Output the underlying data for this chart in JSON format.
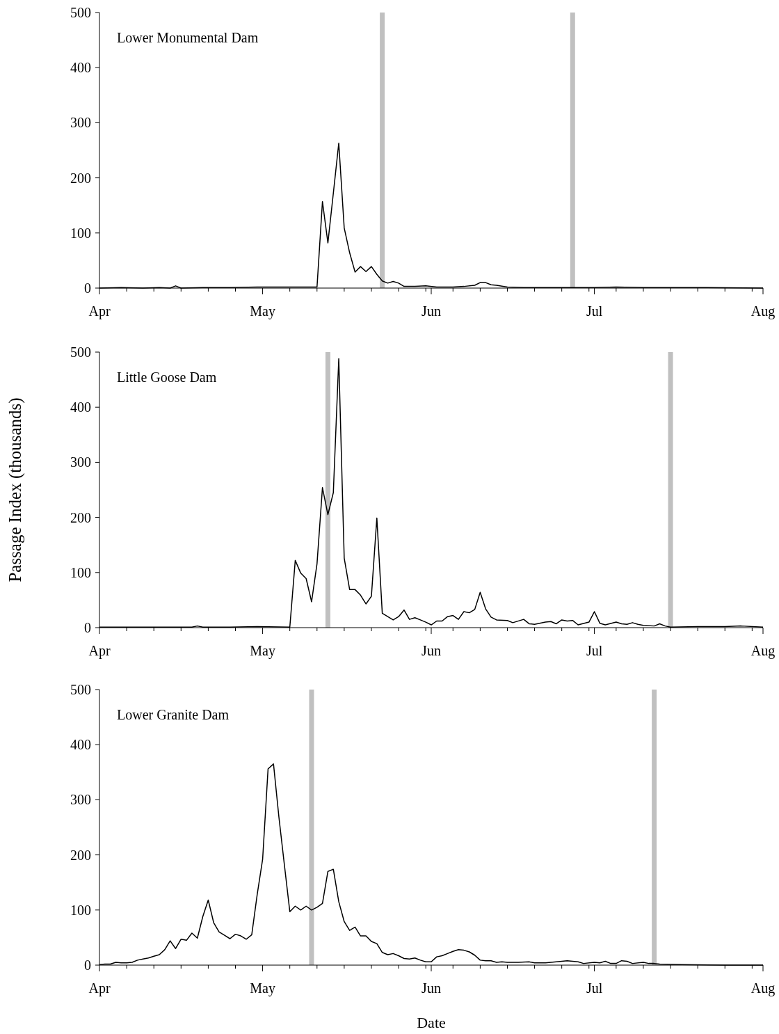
{
  "chart_data": [
    {
      "type": "line",
      "title": "Lower Monumental Dam",
      "xlim": [
        "--04-01",
        "--08-01"
      ],
      "ylim": [
        0,
        500
      ],
      "yticks": [
        0,
        100,
        200,
        300,
        400,
        500
      ],
      "xticks": [
        {
          "value": "--04-01",
          "label": "Apr"
        },
        {
          "value": "--04-06",
          "label": null
        },
        {
          "value": "--04-11",
          "label": null
        },
        {
          "value": "--04-16",
          "label": null
        },
        {
          "value": "--04-21",
          "label": null
        },
        {
          "value": "--04-26",
          "label": null
        },
        {
          "value": "--05-01",
          "label": "May"
        },
        {
          "value": "--05-06",
          "label": null
        },
        {
          "value": "--05-11",
          "label": null
        },
        {
          "value": "--05-16",
          "label": null
        },
        {
          "value": "--05-21",
          "label": null
        },
        {
          "value": "--05-26",
          "label": null
        },
        {
          "value": "--05-31",
          "label": null
        },
        {
          "value": "--06-01",
          "label": "Jun"
        },
        {
          "value": "--06-05",
          "label": null
        },
        {
          "value": "--06-10",
          "label": null
        },
        {
          "value": "--06-15",
          "label": null
        },
        {
          "value": "--06-20",
          "label": null
        },
        {
          "value": "--06-25",
          "label": null
        },
        {
          "value": "--06-30",
          "label": null
        },
        {
          "value": "--07-01",
          "label": "Jul"
        },
        {
          "value": "--07-05",
          "label": null
        },
        {
          "value": "--07-10",
          "label": null
        },
        {
          "value": "--07-15",
          "label": null
        },
        {
          "value": "--07-20",
          "label": null
        },
        {
          "value": "--07-25",
          "label": null
        },
        {
          "value": "--07-30",
          "label": null
        },
        {
          "value": "--08-01",
          "label": "Aug"
        }
      ],
      "series": [
        {
          "color": "#000000",
          "x": [
            "--04-01",
            "--04-05",
            "--04-09",
            "--04-12",
            "--04-14",
            "--04-15",
            "--04-16",
            "--04-20",
            "--04-25",
            "--04-30",
            "--05-05",
            "--05-10",
            "--05-11",
            "--05-12",
            "--05-13",
            "--05-14",
            "--05-15",
            "--05-16",
            "--05-17",
            "--05-18",
            "--05-19",
            "--05-20",
            "--05-21",
            "--05-22",
            "--05-23",
            "--05-24",
            "--05-25",
            "--05-26",
            "--05-27",
            "--05-29",
            "--05-31",
            "--06-02",
            "--06-05",
            "--06-07",
            "--06-09",
            "--06-10",
            "--06-11",
            "--06-12",
            "--06-13",
            "--06-15",
            "--06-18",
            "--06-25",
            "--07-01",
            "--07-05",
            "--07-10",
            "--07-20",
            "--08-01"
          ],
          "values": [
            0,
            1,
            0,
            1,
            0,
            4,
            0,
            1,
            1,
            2,
            2,
            2,
            2,
            157,
            82,
            172,
            263,
            109,
            64,
            29,
            39,
            30,
            39,
            25,
            13,
            9,
            12,
            9,
            3,
            3,
            4,
            2,
            2,
            3,
            5,
            10,
            10,
            6,
            5,
            2,
            1,
            1,
            1,
            2,
            1,
            1,
            0
          ]
        }
      ],
      "ref_lines": [
        {
          "axis": "x",
          "value": "--05-23",
          "color": "#c0c0c0"
        },
        {
          "axis": "x",
          "value": "--06-27",
          "color": "#c0c0c0"
        }
      ]
    },
    {
      "type": "line",
      "title": "Little Goose Dam",
      "ylabel": "Passage Index (thousands)",
      "xlim": [
        "--04-01",
        "--08-01"
      ],
      "ylim": [
        0,
        500
      ],
      "yticks": [
        0,
        100,
        200,
        300,
        400,
        500
      ],
      "xticks": [
        {
          "value": "--04-01",
          "label": "Apr"
        },
        {
          "value": "--04-06",
          "label": null
        },
        {
          "value": "--04-11",
          "label": null
        },
        {
          "value": "--04-16",
          "label": null
        },
        {
          "value": "--04-21",
          "label": null
        },
        {
          "value": "--04-26",
          "label": null
        },
        {
          "value": "--05-01",
          "label": "May"
        },
        {
          "value": "--05-06",
          "label": null
        },
        {
          "value": "--05-11",
          "label": null
        },
        {
          "value": "--05-16",
          "label": null
        },
        {
          "value": "--05-21",
          "label": null
        },
        {
          "value": "--05-26",
          "label": null
        },
        {
          "value": "--05-31",
          "label": null
        },
        {
          "value": "--06-01",
          "label": "Jun"
        },
        {
          "value": "--06-05",
          "label": null
        },
        {
          "value": "--06-10",
          "label": null
        },
        {
          "value": "--06-15",
          "label": null
        },
        {
          "value": "--06-20",
          "label": null
        },
        {
          "value": "--06-25",
          "label": null
        },
        {
          "value": "--06-30",
          "label": null
        },
        {
          "value": "--07-01",
          "label": "Jul"
        },
        {
          "value": "--07-05",
          "label": null
        },
        {
          "value": "--07-10",
          "label": null
        },
        {
          "value": "--07-15",
          "label": null
        },
        {
          "value": "--07-20",
          "label": null
        },
        {
          "value": "--07-25",
          "label": null
        },
        {
          "value": "--07-30",
          "label": null
        },
        {
          "value": "--08-01",
          "label": "Aug"
        }
      ],
      "series": [
        {
          "color": "#000000",
          "x": [
            "--04-01",
            "--04-10",
            "--04-18",
            "--04-19",
            "--04-20",
            "--04-25",
            "--04-30",
            "--05-06",
            "--05-07",
            "--05-08",
            "--05-09",
            "--05-10",
            "--05-11",
            "--05-12",
            "--05-13",
            "--05-14",
            "--05-15",
            "--05-16",
            "--05-17",
            "--05-18",
            "--05-19",
            "--05-20",
            "--05-21",
            "--05-22",
            "--05-23",
            "--05-24",
            "--05-25",
            "--05-26",
            "--05-27",
            "--05-28",
            "--05-29",
            "--05-30",
            "--05-31",
            "--06-01",
            "--06-02",
            "--06-03",
            "--06-04",
            "--06-05",
            "--06-06",
            "--06-07",
            "--06-08",
            "--06-09",
            "--06-10",
            "--06-11",
            "--06-12",
            "--06-13",
            "--06-15",
            "--06-16",
            "--06-18",
            "--06-19",
            "--06-20",
            "--06-22",
            "--06-23",
            "--06-24",
            "--06-25",
            "--06-26",
            "--06-27",
            "--06-28",
            "--06-30",
            "--07-01",
            "--07-02",
            "--07-03",
            "--07-05",
            "--07-06",
            "--07-07",
            "--07-08",
            "--07-09",
            "--07-10",
            "--07-12",
            "--07-13",
            "--07-14",
            "--07-15",
            "--07-20",
            "--07-25",
            "--07-28",
            "--08-01"
          ],
          "values": [
            1,
            1,
            1,
            3,
            1,
            1,
            2,
            1,
            122,
            99,
            89,
            47,
            116,
            254,
            205,
            245,
            488,
            126,
            69,
            69,
            59,
            43,
            57,
            199,
            26,
            20,
            14,
            20,
            32,
            15,
            18,
            14,
            10,
            5,
            12,
            12,
            20,
            22,
            15,
            29,
            27,
            33,
            64,
            34,
            19,
            14,
            13,
            9,
            15,
            7,
            6,
            10,
            11,
            7,
            14,
            12,
            13,
            5,
            10,
            29,
            8,
            5,
            10,
            7,
            6,
            9,
            6,
            4,
            3,
            7,
            3,
            1,
            2,
            2,
            3,
            1
          ]
        }
      ],
      "ref_lines": [
        {
          "axis": "x",
          "value": "--05-13",
          "color": "#c0c0c0"
        },
        {
          "axis": "x",
          "value": "--07-15",
          "color": "#c0c0c0"
        }
      ]
    },
    {
      "type": "line",
      "title": "Lower Granite Dam",
      "xlabel": "Date",
      "xlim": [
        "--04-01",
        "--08-01"
      ],
      "ylim": [
        0,
        500
      ],
      "yticks": [
        0,
        100,
        200,
        300,
        400,
        500
      ],
      "xticks": [
        {
          "value": "--04-01",
          "label": "Apr"
        },
        {
          "value": "--04-06",
          "label": null
        },
        {
          "value": "--04-11",
          "label": null
        },
        {
          "value": "--04-16",
          "label": null
        },
        {
          "value": "--04-21",
          "label": null
        },
        {
          "value": "--04-26",
          "label": null
        },
        {
          "value": "--05-01",
          "label": "May"
        },
        {
          "value": "--05-06",
          "label": null
        },
        {
          "value": "--05-11",
          "label": null
        },
        {
          "value": "--05-16",
          "label": null
        },
        {
          "value": "--05-21",
          "label": null
        },
        {
          "value": "--05-26",
          "label": null
        },
        {
          "value": "--05-31",
          "label": null
        },
        {
          "value": "--06-01",
          "label": "Jun"
        },
        {
          "value": "--06-05",
          "label": null
        },
        {
          "value": "--06-10",
          "label": null
        },
        {
          "value": "--06-15",
          "label": null
        },
        {
          "value": "--06-20",
          "label": null
        },
        {
          "value": "--06-25",
          "label": null
        },
        {
          "value": "--06-30",
          "label": null
        },
        {
          "value": "--07-01",
          "label": "Jul"
        },
        {
          "value": "--07-05",
          "label": null
        },
        {
          "value": "--07-10",
          "label": null
        },
        {
          "value": "--07-15",
          "label": null
        },
        {
          "value": "--07-20",
          "label": null
        },
        {
          "value": "--07-25",
          "label": null
        },
        {
          "value": "--07-30",
          "label": null
        },
        {
          "value": "--08-01",
          "label": "Aug"
        }
      ],
      "series": [
        {
          "color": "#000000",
          "x": [
            "--04-01",
            "--04-02",
            "--04-03",
            "--04-04",
            "--04-05",
            "--04-06",
            "--04-07",
            "--04-08",
            "--04-09",
            "--04-10",
            "--04-11",
            "--04-12",
            "--04-13",
            "--04-14",
            "--04-15",
            "--04-16",
            "--04-17",
            "--04-18",
            "--04-19",
            "--04-20",
            "--04-21",
            "--04-22",
            "--04-23",
            "--04-24",
            "--04-25",
            "--04-26",
            "--04-27",
            "--04-28",
            "--04-29",
            "--04-30",
            "--05-01",
            "--05-02",
            "--05-03",
            "--05-04",
            "--05-05",
            "--05-06",
            "--05-07",
            "--05-08",
            "--05-09",
            "--05-10",
            "--05-11",
            "--05-12",
            "--05-13",
            "--05-14",
            "--05-15",
            "--05-16",
            "--05-17",
            "--05-18",
            "--05-19",
            "--05-20",
            "--05-21",
            "--05-22",
            "--05-23",
            "--05-24",
            "--05-25",
            "--05-26",
            "--05-27",
            "--05-28",
            "--05-29",
            "--05-30",
            "--05-31",
            "--06-01",
            "--06-02",
            "--06-03",
            "--06-04",
            "--06-05",
            "--06-06",
            "--06-07",
            "--06-08",
            "--06-09",
            "--06-10",
            "--06-11",
            "--06-12",
            "--06-13",
            "--06-14",
            "--06-15",
            "--06-17",
            "--06-19",
            "--06-20",
            "--06-22",
            "--06-24",
            "--06-26",
            "--06-28",
            "--06-29",
            "--07-01",
            "--07-02",
            "--07-03",
            "--07-04",
            "--07-05",
            "--07-06",
            "--07-07",
            "--07-08",
            "--07-10",
            "--07-11",
            "--07-12",
            "--07-13",
            "--07-17",
            "--07-25",
            "--08-01"
          ],
          "values": [
            1,
            2,
            2,
            5,
            4,
            4,
            5,
            9,
            11,
            13,
            16,
            19,
            28,
            44,
            30,
            47,
            45,
            58,
            49,
            88,
            118,
            77,
            60,
            54,
            48,
            56,
            53,
            47,
            55,
            128,
            192,
            356,
            365,
            268,
            182,
            97,
            107,
            100,
            107,
            100,
            105,
            112,
            170,
            174,
            115,
            79,
            63,
            69,
            53,
            53,
            43,
            39,
            23,
            19,
            21,
            17,
            12,
            11,
            13,
            9,
            6,
            6,
            15,
            17,
            21,
            25,
            28,
            27,
            24,
            18,
            9,
            8,
            8,
            5,
            6,
            5,
            5,
            6,
            4,
            4,
            6,
            8,
            6,
            3,
            5,
            4,
            7,
            3,
            3,
            8,
            7,
            3,
            5,
            3,
            3,
            2,
            1,
            0,
            0
          ]
        }
      ],
      "ref_lines": [
        {
          "axis": "x",
          "value": "--05-10",
          "color": "#c0c0c0"
        },
        {
          "axis": "x",
          "value": "--07-12",
          "color": "#c0c0c0"
        }
      ]
    }
  ]
}
